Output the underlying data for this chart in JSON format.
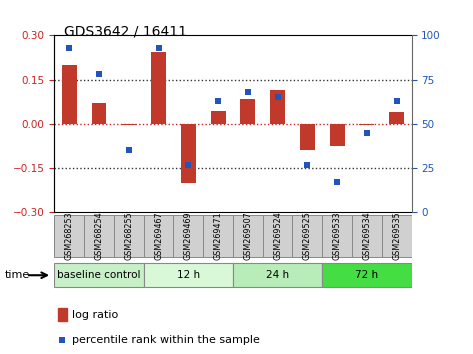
{
  "title": "GDS3642 / 16411",
  "samples": [
    "GSM268253",
    "GSM268254",
    "GSM268255",
    "GSM269467",
    "GSM269469",
    "GSM269471",
    "GSM269507",
    "GSM269524",
    "GSM269525",
    "GSM269533",
    "GSM269534",
    "GSM269535"
  ],
  "log_ratio": [
    0.2,
    0.07,
    -0.005,
    0.245,
    -0.2,
    0.045,
    0.085,
    0.115,
    -0.09,
    -0.075,
    -0.005,
    0.04
  ],
  "percentile_rank": [
    93,
    78,
    35,
    93,
    27,
    63,
    68,
    65,
    27,
    17,
    45,
    63
  ],
  "bar_color": "#c0392b",
  "dot_color": "#2255bb",
  "groups": [
    {
      "label": "baseline control",
      "start": 0,
      "end": 3,
      "color": "#c8f0c8"
    },
    {
      "label": "12 h",
      "start": 3,
      "end": 6,
      "color": "#d8f8d8"
    },
    {
      "label": "24 h",
      "start": 6,
      "end": 9,
      "color": "#b8ecb8"
    },
    {
      "label": "72 h",
      "start": 9,
      "end": 12,
      "color": "#44dd44"
    }
  ],
  "ylim_left": [
    -0.3,
    0.3
  ],
  "ylim_right": [
    0,
    100
  ],
  "yticks_left": [
    -0.3,
    -0.15,
    0,
    0.15,
    0.3
  ],
  "yticks_right": [
    0,
    25,
    50,
    75,
    100
  ],
  "tick_label_color_left": "#cc2222",
  "tick_label_color_right": "#2255bb",
  "bar_width": 0.5,
  "sample_box_color": "#d0d0d0",
  "sample_box_edge": "#888888"
}
